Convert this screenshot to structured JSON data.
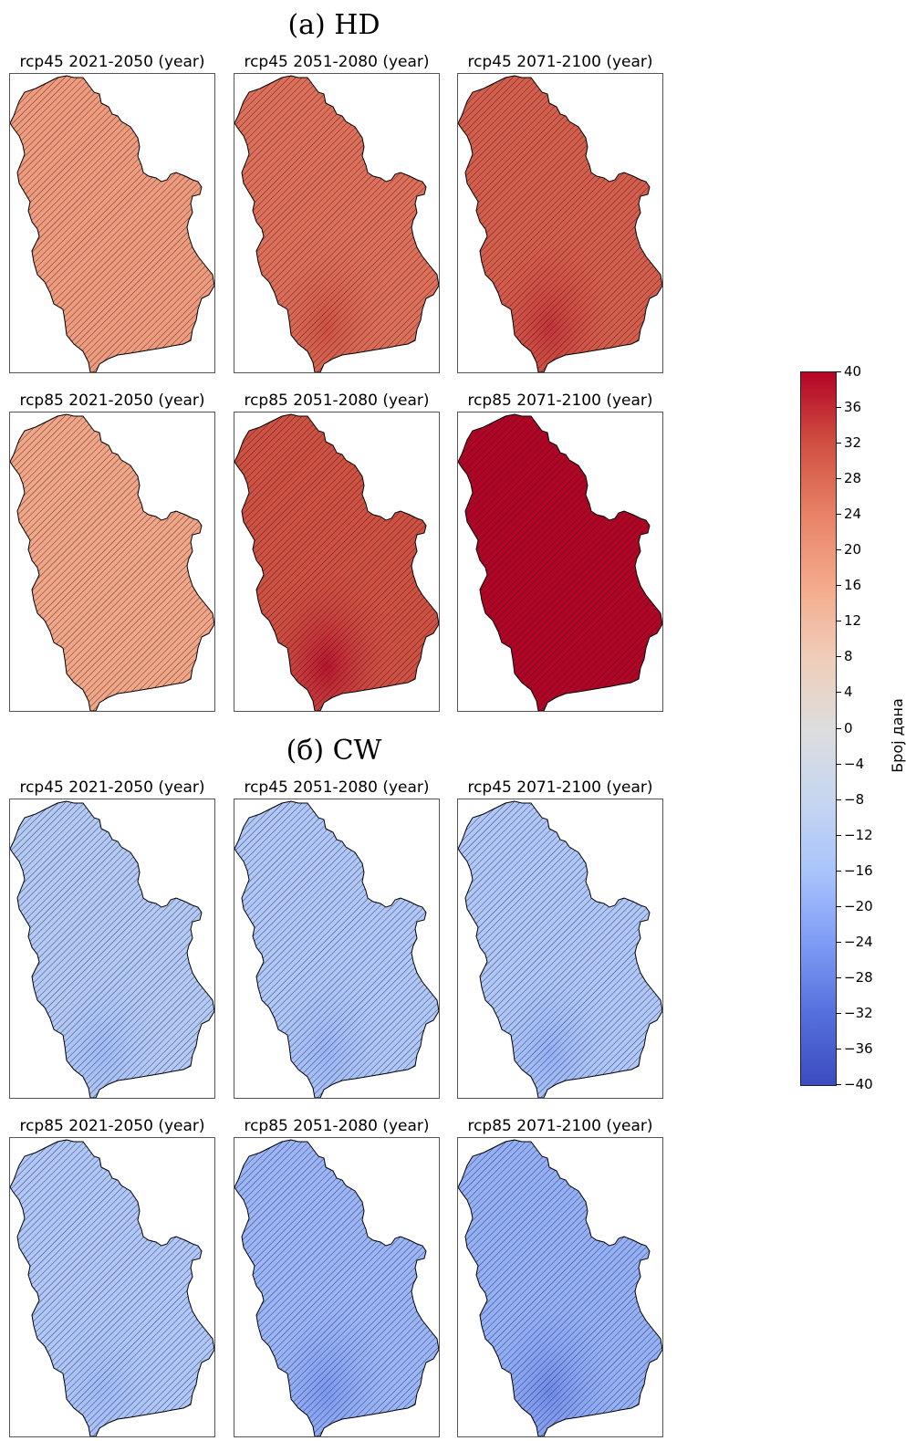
{
  "sections": [
    {
      "title": "(a) HD",
      "panels": [
        {
          "title": "rcp45 2021-2050 (year)",
          "mean": 17,
          "hotspot": 0
        },
        {
          "title": "rcp45 2051-2080 (year)",
          "mean": 25,
          "hotspot": 5
        },
        {
          "title": "rcp45 2071-2100 (year)",
          "mean": 28,
          "hotspot": 6
        },
        {
          "title": "rcp85 2021-2050 (year)",
          "mean": 15,
          "hotspot": 0
        },
        {
          "title": "rcp85 2051-2080 (year)",
          "mean": 30,
          "hotspot": 8
        },
        {
          "title": "rcp85 2071-2100 (year)",
          "mean": 40,
          "hotspot": 0
        }
      ]
    },
    {
      "title": "(б) CW",
      "panels": [
        {
          "title": "rcp45 2021-2050 (year)",
          "mean": -10,
          "hotspot": -4
        },
        {
          "title": "rcp45 2051-2080 (year)",
          "mean": -11,
          "hotspot": -4
        },
        {
          "title": "rcp45 2071-2100 (year)",
          "mean": -11,
          "hotspot": -5
        },
        {
          "title": "rcp85 2021-2050 (year)",
          "mean": -11,
          "hotspot": -3
        },
        {
          "title": "rcp85 2051-2080 (year)",
          "mean": -15,
          "hotspot": -6
        },
        {
          "title": "rcp85 2071-2100 (year)",
          "mean": -16,
          "hotspot": -8
        }
      ]
    }
  ],
  "colorbar": {
    "label": "Број дана",
    "min": -40,
    "max": 40,
    "ticks": [
      "40",
      "36",
      "32",
      "28",
      "24",
      "20",
      "16",
      "12",
      "8",
      "4",
      "0",
      "−4",
      "−8",
      "−12",
      "−16",
      "−20",
      "−24",
      "−28",
      "−32",
      "−36",
      "−40"
    ],
    "colors": [
      "#3b4cc0",
      "#dddddd",
      "#b40426"
    ]
  }
}
